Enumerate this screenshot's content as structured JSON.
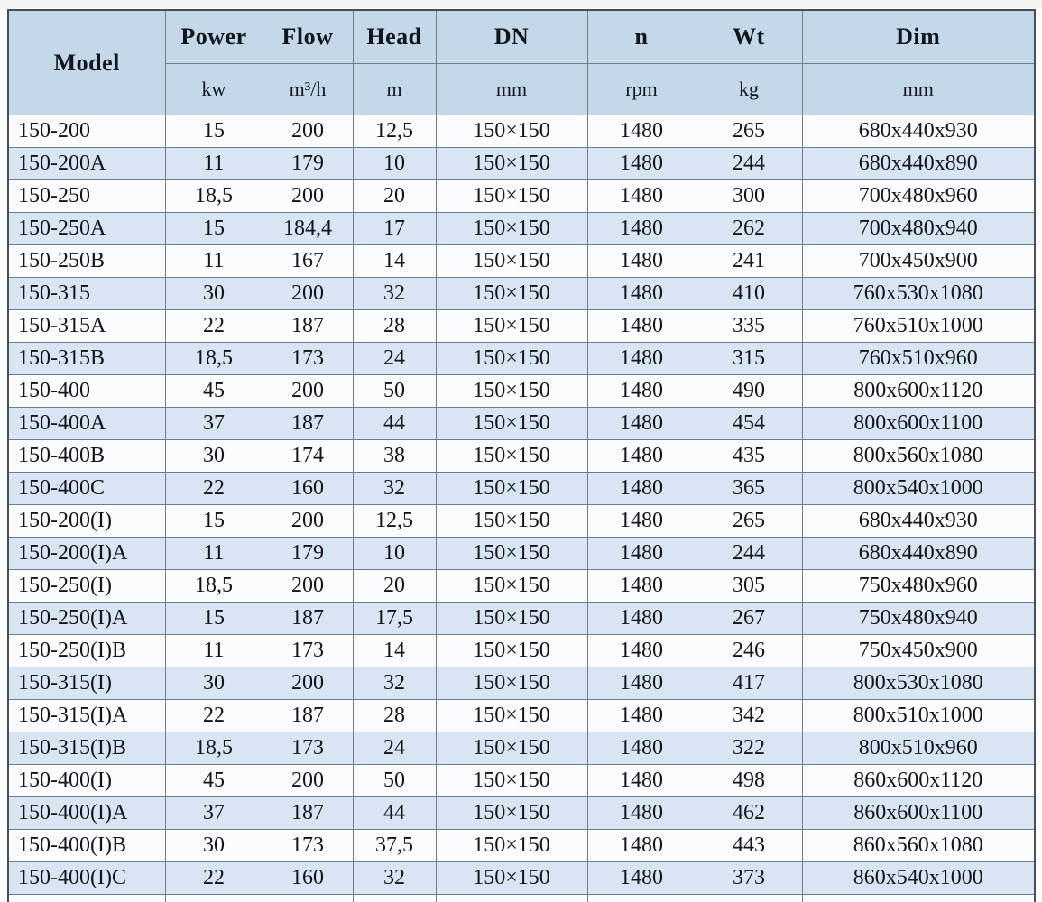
{
  "table": {
    "columns": [
      {
        "key": "model",
        "label": "Model",
        "unit": ""
      },
      {
        "key": "power",
        "label": "Power",
        "unit": "kw"
      },
      {
        "key": "flow",
        "label": "Flow",
        "unit": "m³/h"
      },
      {
        "key": "head",
        "label": "Head",
        "unit": "m"
      },
      {
        "key": "dn",
        "label": "DN",
        "unit": "mm"
      },
      {
        "key": "n",
        "label": "n",
        "unit": "rpm"
      },
      {
        "key": "wt",
        "label": "Wt",
        "unit": "kg"
      },
      {
        "key": "dim",
        "label": "Dim",
        "unit": "mm"
      }
    ],
    "rows": [
      [
        "150-200",
        "15",
        "200",
        "12,5",
        "150×150",
        "1480",
        "265",
        "680x440x930"
      ],
      [
        "150-200A",
        "11",
        "179",
        "10",
        "150×150",
        "1480",
        "244",
        "680x440x890"
      ],
      [
        "150-250",
        "18,5",
        "200",
        "20",
        "150×150",
        "1480",
        "300",
        "700x480x960"
      ],
      [
        "150-250A",
        "15",
        "184,4",
        "17",
        "150×150",
        "1480",
        "262",
        "700x480x940"
      ],
      [
        "150-250B",
        "11",
        "167",
        "14",
        "150×150",
        "1480",
        "241",
        "700x450x900"
      ],
      [
        "150-315",
        "30",
        "200",
        "32",
        "150×150",
        "1480",
        "410",
        "760x530x1080"
      ],
      [
        "150-315A",
        "22",
        "187",
        "28",
        "150×150",
        "1480",
        "335",
        "760x510x1000"
      ],
      [
        "150-315B",
        "18,5",
        "173",
        "24",
        "150×150",
        "1480",
        "315",
        "760x510x960"
      ],
      [
        "150-400",
        "45",
        "200",
        "50",
        "150×150",
        "1480",
        "490",
        "800x600x1120"
      ],
      [
        "150-400A",
        "37",
        "187",
        "44",
        "150×150",
        "1480",
        "454",
        "800x600x1100"
      ],
      [
        "150-400B",
        "30",
        "174",
        "38",
        "150×150",
        "1480",
        "435",
        "800x560x1080"
      ],
      [
        "150-400C",
        "22",
        "160",
        "32",
        "150×150",
        "1480",
        "365",
        "800x540x1000"
      ],
      [
        "150-200(I)",
        "15",
        "200",
        "12,5",
        "150×150",
        "1480",
        "265",
        "680x440x930"
      ],
      [
        "150-200(I)A",
        "11",
        "179",
        "10",
        "150×150",
        "1480",
        "244",
        "680x440x890"
      ],
      [
        "150-250(I)",
        "18,5",
        "200",
        "20",
        "150×150",
        "1480",
        "305",
        "750x480x960"
      ],
      [
        "150-250(I)A",
        "15",
        "187",
        "17,5",
        "150×150",
        "1480",
        "267",
        "750x480x940"
      ],
      [
        "150-250(I)B",
        "11",
        "173",
        "14",
        "150×150",
        "1480",
        "246",
        "750x450x900"
      ],
      [
        "150-315(I)",
        "30",
        "200",
        "32",
        "150×150",
        "1480",
        "417",
        "800x530x1080"
      ],
      [
        "150-315(I)A",
        "22",
        "187",
        "28",
        "150×150",
        "1480",
        "342",
        "800x510x1000"
      ],
      [
        "150-315(I)B",
        "18,5",
        "173",
        "24",
        "150×150",
        "1480",
        "322",
        "800x510x960"
      ],
      [
        "150-400(I)",
        "45",
        "200",
        "50",
        "150×150",
        "1480",
        "498",
        "860x600x1120"
      ],
      [
        "150-400(I)A",
        "37",
        "187",
        "44",
        "150×150",
        "1480",
        "462",
        "860x600x1100"
      ],
      [
        "150-400(I)B",
        "30",
        "173",
        "37,5",
        "150×150",
        "1480",
        "443",
        "860x560x1080"
      ],
      [
        "150-400(I)C",
        "22",
        "160",
        "32",
        "150×150",
        "1480",
        "373",
        "860x540x1000"
      ]
    ],
    "colors": {
      "header_bg": "#c4d8ea",
      "stripe_blue": "#d9e5f2",
      "stripe_white": "#fbfcfd",
      "border_outer": "#45505c",
      "border_inner": "#707e8c",
      "text": "#10151c"
    }
  }
}
